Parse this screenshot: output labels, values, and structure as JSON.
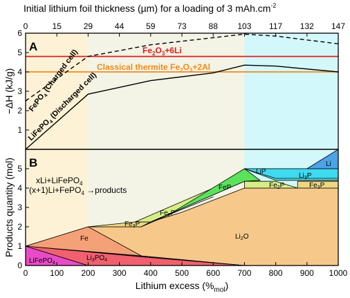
{
  "chart_data": [
    {
      "panel": "A",
      "type": "line",
      "top_xlabel": "Initial lithium foil thickness (µm) for a loading of 3 mAh.cm",
      "top_xlabel_sup": "-2",
      "top_ticks": [
        "0",
        "15",
        "29",
        "44",
        "59",
        "73",
        "88",
        "103",
        "117",
        "132",
        "147"
      ],
      "ylabel": "−ΔH (kJ/g)",
      "xlim": [
        0,
        1000
      ],
      "ylim": [
        0,
        6
      ],
      "yticks": [
        "0",
        "1",
        "2",
        "3",
        "4",
        "5",
        "6"
      ],
      "series": [
        {
          "name": "FePO4 (Charged cell)",
          "style": "dashed",
          "color": "#000000",
          "x": [
            0,
            200,
            400,
            700,
            800,
            1000
          ],
          "y": [
            2.5,
            4.8,
            5.4,
            5.95,
            5.85,
            5.45
          ]
        },
        {
          "name": "LiFePO4 (Discharged cell)",
          "style": "solid",
          "color": "#000000",
          "x": [
            0,
            200,
            400,
            600,
            700,
            800,
            1000
          ],
          "y": [
            0,
            2.85,
            3.55,
            3.95,
            4.35,
            4.3,
            4.0
          ]
        }
      ],
      "reference_lines": [
        {
          "label": "Fe2O3+6Li",
          "y": 4.8,
          "color": "#dd1e1e"
        },
        {
          "label": "Classical thermite Fe2O3+2Al",
          "y": 4.0,
          "color": "#f08a1c"
        }
      ]
    },
    {
      "panel": "B",
      "type": "area",
      "xlabel": "Lithium excess (%mol)",
      "ylabel": "Products quantity (mol)",
      "xlim": [
        0,
        1000
      ],
      "ylim": [
        0,
        6
      ],
      "xticks": [
        "0",
        "100",
        "200",
        "300",
        "400",
        "500",
        "600",
        "700",
        "800",
        "900",
        "1000"
      ],
      "yticks": [
        "0",
        "1",
        "2",
        "3",
        "4",
        "5"
      ],
      "reactions": [
        "xLi+LiFePO4",
        "(x+1)Li+FePO4",
        "→products"
      ],
      "products": [
        "LiFePO4",
        "Li3PO4",
        "Fe",
        "Fe3P",
        "Fe2P",
        "FeP",
        "Li2O",
        "LiP",
        "Li3P",
        "Li"
      ]
    }
  ],
  "regions": {
    "colors": {
      "yellow": "#fdf2d5",
      "grey": "#f3f3e6",
      "cyan": "#d3f8fb"
    },
    "x_boundaries": [
      200,
      700
    ]
  },
  "colors": {
    "LiFePO4": "#e94bc8",
    "Li3PO4": "#f0606e",
    "Fe": "#f5a178",
    "Fe3P": "#ecd883",
    "Fe2P": "#d7ee86",
    "FeP": "#5be25b",
    "Li2O": "#f6c88a",
    "LiP": "#5ae6e6",
    "Li3P": "#3fd9f0",
    "Li": "#4ba3e8"
  }
}
